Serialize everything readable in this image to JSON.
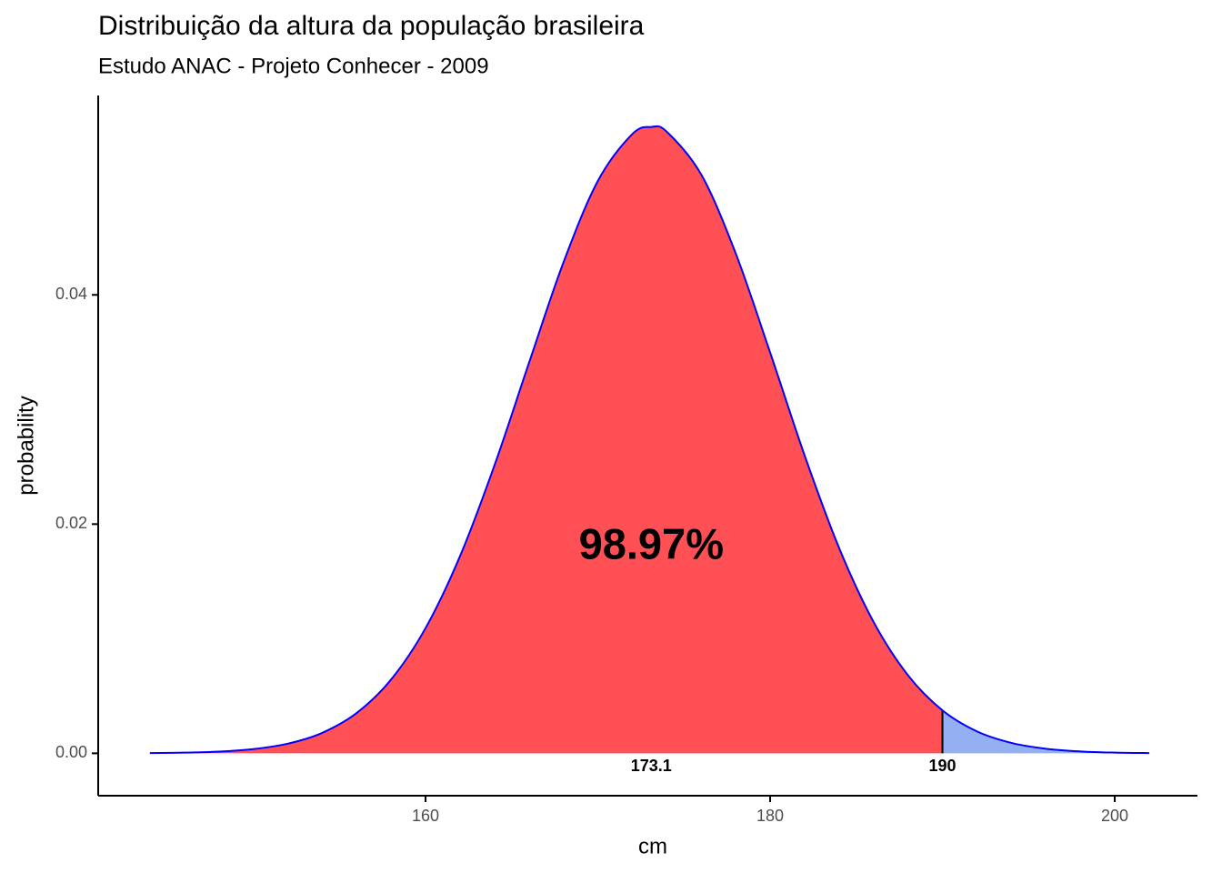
{
  "chart_data": {
    "type": "area",
    "title": "Distribuição da altura da população brasileira",
    "subtitle": "Estudo ANAC - Projeto Conhecer - 2009",
    "x_label": "cm",
    "y_label": "probability",
    "x": [
      144,
      146,
      148,
      150,
      152,
      154,
      156,
      158,
      160,
      162,
      164,
      166,
      168,
      170,
      172,
      173.1,
      174,
      176,
      178,
      180,
      182,
      184,
      186,
      188,
      190,
      192,
      194,
      196,
      198,
      200,
      202
    ],
    "values": [
      2e-05,
      5.56e-05,
      0.000148,
      0.000366,
      0.000838,
      0.001782,
      0.003518,
      0.006438,
      0.010925,
      0.017204,
      0.025128,
      0.034052,
      0.042818,
      0.04994,
      0.054033,
      0.05465,
      0.054236,
      0.050502,
      0.043627,
      0.034965,
      0.025992,
      0.017925,
      0.011471,
      0.006809,
      0.003748,
      0.001914,
      0.000908,
      0.000399,
      0.000163,
      6.15e-05,
      2.16e-05
    ],
    "color": "#0000ff",
    "fill_color": "#ff5055",
    "tail_color": "#94b0f2",
    "mean": 173.1,
    "cutoff": 190,
    "area_label": "98.97%",
    "xlim": [
      141,
      204.8
    ],
    "ylim": [
      -0.0037,
      0.0574
    ],
    "xticks": [
      160,
      180,
      200
    ],
    "yticks": [
      {
        "value": 0,
        "label": "0.00"
      },
      {
        "value": 0.02,
        "label": "0.02"
      },
      {
        "value": 0.04,
        "label": "0.04"
      }
    ],
    "grid": false
  }
}
